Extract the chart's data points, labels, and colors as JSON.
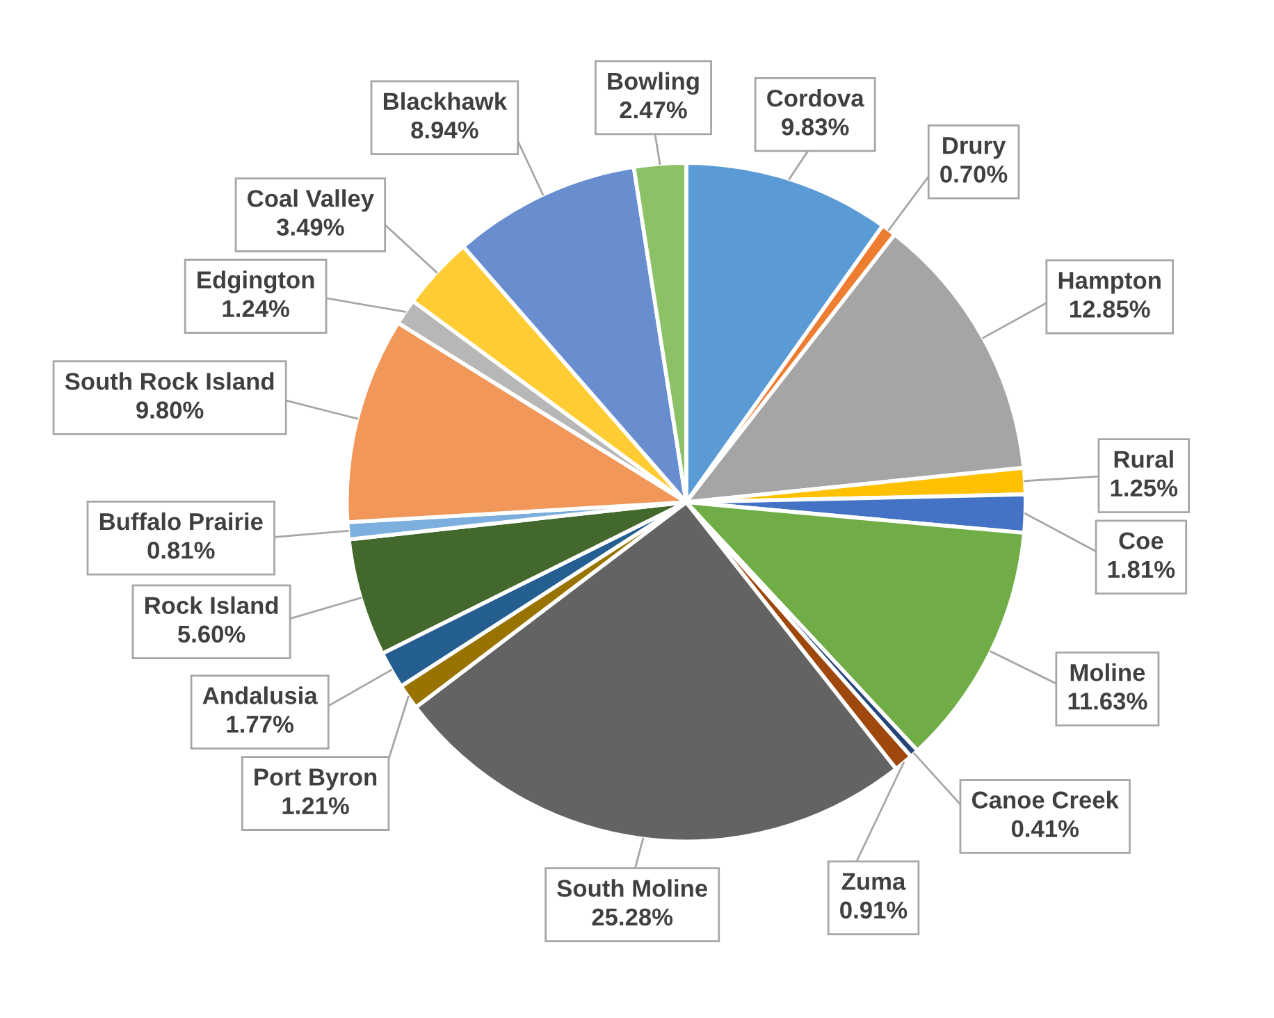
{
  "chart_data": {
    "type": "pie",
    "categories": [
      "Cordova",
      "Drury",
      "Hampton",
      "Rural",
      "Coe",
      "Moline",
      "Canoe Creek",
      "Zuma",
      "South Moline",
      "Port Byron",
      "Andalusia",
      "Rock Island",
      "Buffalo Prairie",
      "South Rock Island",
      "Edgington",
      "Coal Valley",
      "Blackhawk",
      "Bowling"
    ],
    "values": [
      9.83,
      0.7,
      12.85,
      1.25,
      1.81,
      11.63,
      0.41,
      0.91,
      25.28,
      1.21,
      1.77,
      5.6,
      0.81,
      9.8,
      1.24,
      3.49,
      8.94,
      2.47
    ],
    "colors": [
      "#5b9bd5",
      "#ed7d31",
      "#a5a5a5",
      "#ffc000",
      "#4472c4",
      "#70ad47",
      "#264478",
      "#9e480e",
      "#636363",
      "#997300",
      "#255e91",
      "#43682b",
      "#7cafdd",
      "#f1975a",
      "#b7b7b7",
      "#ffcd33",
      "#698ed0",
      "#8cc168"
    ],
    "value_labels": [
      "9.83%",
      "0.70%",
      "12.85%",
      "1.25%",
      "1.81%",
      "11.63%",
      "0.41%",
      "0.91%",
      "25.28%",
      "1.21%",
      "1.77%",
      "5.60%",
      "0.81%",
      "9.80%",
      "1.24%",
      "3.49%",
      "8.94%",
      "2.47%"
    ]
  }
}
